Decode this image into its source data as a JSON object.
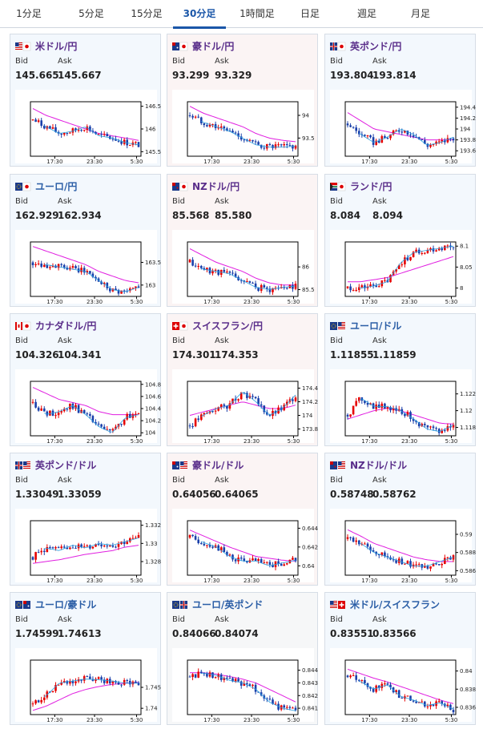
{
  "tabs": [
    "1分足",
    "5分足",
    "15分足",
    "30分足",
    "1時間足",
    "日足",
    "週足",
    "月足"
  ],
  "active_tab": 3,
  "labels": {
    "bid": "Bid",
    "ask": "Ask"
  },
  "x_ticks": [
    "17:30",
    "23:30",
    "5:30"
  ],
  "colors": {
    "up": "#e60000",
    "down": "#1a3faa",
    "ma_slow": "#e01ee0",
    "ma_fast": "#2aa0e0",
    "frame": "#000000",
    "tab_active": "#1a56a8"
  },
  "panels": [
    {
      "title": "米ドル/円",
      "flags": [
        "us",
        "jp"
      ],
      "bid": "145.665",
      "ask": "145.667",
      "yticks": [
        "146.5",
        "146",
        "145.5"
      ],
      "ylim": [
        145.4,
        146.6
      ],
      "trend": [
        146.2,
        146.05,
        145.9,
        145.95,
        146.05,
        145.85,
        145.8,
        145.7,
        145.65
      ],
      "ma": [
        146.45,
        146.3,
        146.2,
        146.1,
        146.0,
        145.9,
        145.85,
        145.8,
        145.75
      ],
      "title_color": "purple",
      "bg": "blue"
    },
    {
      "title": "豪ドル/円",
      "flags": [
        "au",
        "jp"
      ],
      "bid": "93.299",
      "ask": "93.329",
      "yticks": [
        "94",
        "93.5"
      ],
      "ylim": [
        93.1,
        94.3
      ],
      "trend": [
        94.0,
        93.85,
        93.75,
        93.65,
        93.5,
        93.35,
        93.3,
        93.3,
        93.32
      ],
      "ma": [
        94.2,
        94.05,
        93.95,
        93.85,
        93.75,
        93.6,
        93.5,
        93.45,
        93.42
      ],
      "title_color": "purple",
      "bg": "pink"
    },
    {
      "title": "英ポンド/円",
      "flags": [
        "uk",
        "jp"
      ],
      "bid": "193.804",
      "ask": "193.814",
      "yticks": [
        "194.4",
        "194.2",
        "194",
        "193.8",
        "193.6"
      ],
      "ylim": [
        193.5,
        194.5
      ],
      "trend": [
        194.1,
        193.9,
        193.75,
        193.85,
        194.0,
        193.9,
        193.7,
        193.75,
        193.85
      ],
      "ma": [
        194.3,
        194.15,
        194.0,
        193.95,
        193.9,
        193.85,
        193.8,
        193.8,
        193.8
      ],
      "title_color": "purple",
      "bg": "blue"
    },
    {
      "title": "ユーロ/円",
      "flags": [
        "eu",
        "jp"
      ],
      "bid": "162.929",
      "ask": "162.934",
      "yticks": [
        "163.5",
        "163"
      ],
      "ylim": [
        162.75,
        163.95
      ],
      "trend": [
        163.5,
        163.45,
        163.4,
        163.35,
        163.3,
        163.1,
        162.9,
        162.85,
        162.95
      ],
      "ma": [
        163.85,
        163.75,
        163.65,
        163.55,
        163.45,
        163.3,
        163.2,
        163.1,
        163.05
      ],
      "title_color": "cyan",
      "bg": "blue"
    },
    {
      "title": "NZドル/円",
      "flags": [
        "nz",
        "jp"
      ],
      "bid": "85.568",
      "ask": "85.580",
      "yticks": [
        "86",
        "85.5"
      ],
      "ylim": [
        85.35,
        86.55
      ],
      "trend": [
        86.1,
        85.95,
        85.9,
        85.85,
        85.7,
        85.55,
        85.5,
        85.55,
        85.58
      ],
      "ma": [
        86.4,
        86.25,
        86.1,
        86.0,
        85.9,
        85.75,
        85.65,
        85.6,
        85.6
      ],
      "title_color": "purple",
      "bg": "pink"
    },
    {
      "title": "ランド/円",
      "flags": [
        "za",
        "jp"
      ],
      "bid": "8.084",
      "ask": "8.094",
      "yticks": [
        "8.1",
        "8.05",
        "8"
      ],
      "ylim": [
        7.98,
        8.11
      ],
      "trend": [
        8.0,
        8.0,
        8.005,
        8.015,
        8.06,
        8.085,
        8.09,
        8.095,
        8.1
      ],
      "ma": [
        8.015,
        8.015,
        8.02,
        8.025,
        8.035,
        8.045,
        8.055,
        8.065,
        8.075
      ],
      "title_color": "purple",
      "bg": "blue"
    },
    {
      "title": "カナダドル/円",
      "flags": [
        "ca",
        "jp"
      ],
      "bid": "104.326",
      "ask": "104.341",
      "yticks": [
        "104.8",
        "104.6",
        "104.4",
        "104.2",
        "104"
      ],
      "ylim": [
        103.95,
        104.85
      ],
      "trend": [
        104.5,
        104.3,
        104.35,
        104.45,
        104.3,
        104.1,
        104.0,
        104.25,
        104.3
      ],
      "ma": [
        104.75,
        104.65,
        104.55,
        104.5,
        104.45,
        104.35,
        104.3,
        104.3,
        104.3
      ],
      "title_color": "purple",
      "bg": "blue"
    },
    {
      "title": "スイスフラン/円",
      "flags": [
        "ch",
        "jp"
      ],
      "bid": "174.301",
      "ask": "174.353",
      "yticks": [
        "174.4",
        "174.2",
        "174",
        "173.8"
      ],
      "ylim": [
        173.7,
        174.5
      ],
      "trend": [
        173.85,
        174.0,
        174.1,
        174.15,
        174.35,
        174.2,
        174.0,
        174.1,
        174.3
      ],
      "ma": [
        174.0,
        174.05,
        174.1,
        174.15,
        174.2,
        174.15,
        174.1,
        174.1,
        174.15
      ],
      "title_color": "purple",
      "bg": "pink"
    },
    {
      "title": "ユーロ/ドル",
      "flags": [
        "eu",
        "us"
      ],
      "bid": "1.11855",
      "ask": "1.11859",
      "yticks": [
        "1.122",
        "1.12",
        "1.118"
      ],
      "ylim": [
        1.117,
        1.1235
      ],
      "trend": [
        1.1195,
        1.1215,
        1.1205,
        1.1205,
        1.12,
        1.119,
        1.1178,
        1.1175,
        1.1183
      ],
      "ma": [
        1.119,
        1.1195,
        1.12,
        1.1203,
        1.12,
        1.1195,
        1.119,
        1.1185,
        1.1184
      ],
      "title_color": "cyan",
      "bg": "blue"
    },
    {
      "title": "英ポンド/ドル",
      "flags": [
        "uk",
        "us"
      ],
      "bid": "1.33049",
      "ask": "1.33059",
      "yticks": [
        "1.332",
        "1.33",
        "1.328"
      ],
      "ylim": [
        1.3265,
        1.3325
      ],
      "trend": [
        1.3285,
        1.3295,
        1.3292,
        1.3298,
        1.3295,
        1.33,
        1.3298,
        1.3302,
        1.3306
      ],
      "ma": [
        1.3278,
        1.328,
        1.3282,
        1.3285,
        1.3288,
        1.329,
        1.3292,
        1.3296,
        1.3298
      ],
      "title_color": "purple",
      "bg": "blue"
    },
    {
      "title": "豪ドル/ドル",
      "flags": [
        "au",
        "us"
      ],
      "bid": "0.64056",
      "ask": "0.64065",
      "yticks": [
        "0.644",
        "0.642",
        "0.64"
      ],
      "ylim": [
        0.639,
        0.6448
      ],
      "trend": [
        0.643,
        0.6425,
        0.642,
        0.641,
        0.6405,
        0.6405,
        0.64,
        0.6403,
        0.6406
      ],
      "ma": [
        0.6438,
        0.6432,
        0.6426,
        0.642,
        0.6415,
        0.641,
        0.6408,
        0.6406,
        0.6405
      ],
      "title_color": "purple",
      "bg": "pink"
    },
    {
      "title": "NZドル/ドル",
      "flags": [
        "nz",
        "us"
      ],
      "bid": "0.58748",
      "ask": "0.58762",
      "yticks": [
        "0.59",
        "0.588",
        "0.586"
      ],
      "ylim": [
        0.5855,
        0.5915
      ],
      "trend": [
        0.5895,
        0.589,
        0.588,
        0.5875,
        0.587,
        0.5865,
        0.5865,
        0.587,
        0.5875
      ],
      "ma": [
        0.5905,
        0.5898,
        0.589,
        0.5885,
        0.588,
        0.5875,
        0.5872,
        0.587,
        0.587
      ],
      "title_color": "purple",
      "bg": "blue"
    },
    {
      "title": "ユーロ/豪ドル",
      "flags": [
        "eu",
        "au"
      ],
      "bid": "1.74599",
      "ask": "1.74613",
      "yticks": [
        "1.745",
        "1.74"
      ],
      "ylim": [
        1.7385,
        1.7515
      ],
      "trend": [
        1.741,
        1.743,
        1.746,
        1.7465,
        1.747,
        1.7468,
        1.7465,
        1.746,
        1.746
      ],
      "ma": [
        1.7395,
        1.7405,
        1.742,
        1.7435,
        1.7445,
        1.7452,
        1.7457,
        1.746,
        1.7462
      ],
      "title_color": "cyan",
      "bg": "blue"
    },
    {
      "title": "ユーロ/英ポンド",
      "flags": [
        "eu",
        "uk"
      ],
      "bid": "0.84066",
      "ask": "0.84074",
      "yticks": [
        "0.844",
        "0.843",
        "0.842",
        "0.841"
      ],
      "ylim": [
        0.8405,
        0.8448
      ],
      "trend": [
        0.8435,
        0.8438,
        0.8436,
        0.8432,
        0.843,
        0.8425,
        0.8415,
        0.841,
        0.8408
      ],
      "ma": [
        0.8438,
        0.8438,
        0.8437,
        0.8435,
        0.8433,
        0.843,
        0.8425,
        0.842,
        0.8415
      ],
      "title_color": "cyan",
      "bg": "gray"
    },
    {
      "title": "米ドル/スイスフラン",
      "flags": [
        "us",
        "ch"
      ],
      "bid": "0.83551",
      "ask": "0.83566",
      "yticks": [
        "0.84",
        "0.838",
        "0.836"
      ],
      "ylim": [
        0.8352,
        0.8412
      ],
      "trend": [
        0.8395,
        0.8388,
        0.838,
        0.8385,
        0.8372,
        0.8368,
        0.8362,
        0.8365,
        0.8358
      ],
      "ma": [
        0.8402,
        0.8397,
        0.8392,
        0.8388,
        0.8383,
        0.8378,
        0.8373,
        0.8368,
        0.8364
      ],
      "title_color": "cyan",
      "bg": "blue"
    }
  ]
}
